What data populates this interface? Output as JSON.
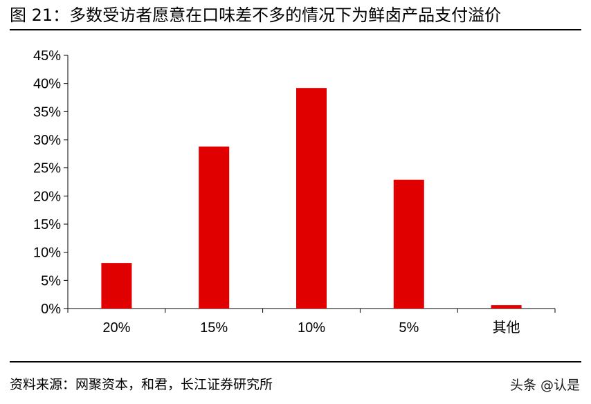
{
  "header": {
    "title": "图 21：多数受访者愿意在口味差不多的情况下为鲜卤产品支付溢价"
  },
  "chart_data": {
    "type": "bar",
    "title": "",
    "xlabel": "",
    "ylabel": "",
    "categories": [
      "20%",
      "15%",
      "10%",
      "5%",
      "其他"
    ],
    "values": [
      8.1,
      28.8,
      39.2,
      22.9,
      0.6
    ],
    "value_unit": "%",
    "ylim": [
      0,
      45
    ],
    "yticks": [
      "0%",
      "5%",
      "10%",
      "15%",
      "20%",
      "25%",
      "30%",
      "35%",
      "40%",
      "45%"
    ],
    "grid": false,
    "legend": "none",
    "bar_color": "#e00000"
  },
  "footer": {
    "source": "资料来源：网聚资本，和君，长江证券研究所",
    "watermark": "头条 @认是"
  }
}
